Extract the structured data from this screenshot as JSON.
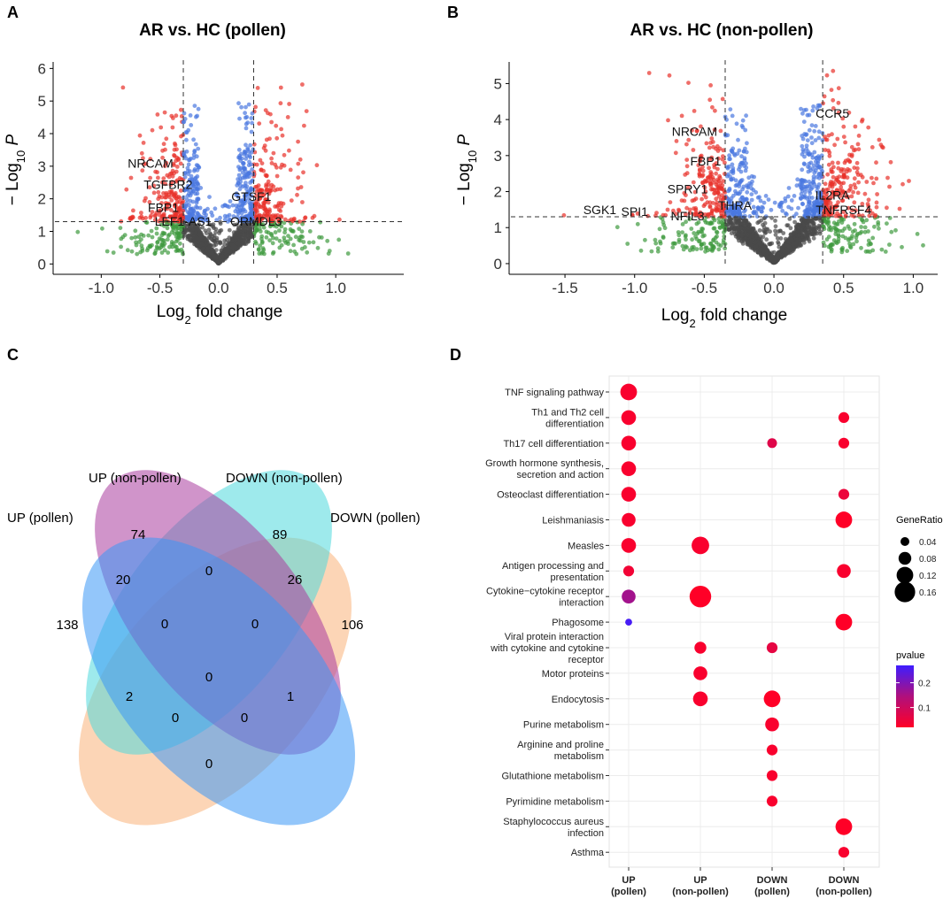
{
  "panels": {
    "a": "A",
    "b": "B",
    "c": "C",
    "d": "D"
  },
  "colors": {
    "red": "#e8302a",
    "blue": "#4a78e0",
    "green": "#3f9a3f",
    "grey": "#4a4a4a",
    "venn_up_pollen": "#f9b37a",
    "venn_up_nonpollen": "#4fd8dc",
    "venn_down_nonpollen": "#a93c9f",
    "venn_down_pollen": "#3b98f5",
    "p_low": "#ff0027",
    "p_high": "#3e1dff",
    "grid": "#ececec"
  },
  "chart_data": [
    {
      "type": "scatter",
      "panel": "A",
      "title": "AR vs. HC (pollen)",
      "xlabel": "Log2 fold change",
      "ylabel": "−Log10 P",
      "xlim": [
        -1.35,
        1.55
      ],
      "ylim": [
        -0.1,
        6.2
      ],
      "xticks": [
        -1.0,
        -0.5,
        0.0,
        0.5,
        1.0
      ],
      "xtick_labels": [
        "-1.0",
        "-0.5",
        "0.0",
        "0.5",
        "1.0"
      ],
      "yticks": [
        0,
        1,
        2,
        3,
        4,
        5,
        6
      ],
      "ytick_labels": [
        "0",
        "1",
        "2",
        "3",
        "4",
        "5",
        "6"
      ],
      "fc_threshold": 0.3,
      "p_threshold": 1.3,
      "labels": [
        {
          "text": "NRCAM",
          "x": -0.58,
          "y": 2.95
        },
        {
          "text": "TGFBR2",
          "x": -0.43,
          "y": 2.3
        },
        {
          "text": "FBP1",
          "x": -0.47,
          "y": 1.6
        },
        {
          "text": "LEF1-AS1",
          "x": -0.3,
          "y": 1.17
        },
        {
          "text": "GTSF1",
          "x": 0.28,
          "y": 1.93
        },
        {
          "text": "ORMDL3",
          "x": 0.32,
          "y": 1.17
        }
      ],
      "seed": 11,
      "n_base": 1500,
      "base_gain": 4.2,
      "outer_gain": 1.8,
      "spread": 0.33
    },
    {
      "type": "scatter",
      "panel": "B",
      "title": "AR vs. HC (non-pollen)",
      "xlabel": "Log2 fold change",
      "ylabel": "−Log10 P",
      "xlim": [
        -1.85,
        1.15
      ],
      "ylim": [
        -0.1,
        5.6
      ],
      "xticks": [
        -1.5,
        -1.0,
        -0.5,
        0.0,
        0.5,
        1.0
      ],
      "xtick_labels": [
        "-1.5",
        "-1.0",
        "-0.5",
        "0.0",
        "0.5",
        "1.0"
      ],
      "yticks": [
        0,
        1,
        2,
        3,
        4,
        5
      ],
      "ytick_labels": [
        "0",
        "1",
        "2",
        "3",
        "4",
        "5"
      ],
      "fc_threshold": 0.35,
      "p_threshold": 1.3,
      "labels": [
        {
          "text": "CCR5",
          "x": 0.42,
          "y": 4.05
        },
        {
          "text": "NRCAM",
          "x": -0.57,
          "y": 3.55
        },
        {
          "text": "FBP1",
          "x": -0.49,
          "y": 2.72
        },
        {
          "text": "SPRY1",
          "x": -0.62,
          "y": 1.95
        },
        {
          "text": "THRA",
          "x": -0.28,
          "y": 1.5
        },
        {
          "text": "IL2RA",
          "x": 0.42,
          "y": 1.78
        },
        {
          "text": "SGK1",
          "x": -1.25,
          "y": 1.38
        },
        {
          "text": "SPI1",
          "x": -1.0,
          "y": 1.33
        },
        {
          "text": "NFIL3",
          "x": -0.62,
          "y": 1.2
        },
        {
          "text": "TNFRSF4",
          "x": 0.5,
          "y": 1.38
        }
      ],
      "seed": 23,
      "n_base": 1700,
      "base_gain": 4.0,
      "outer_gain": 1.7,
      "spread": 0.38
    },
    {
      "type": "venn",
      "panel": "C",
      "sets": [
        "UP (pollen)",
        "UP (non-pollen)",
        "DOWN (non-pollen)",
        "DOWN (pollen)"
      ],
      "regions": [
        {
          "sets": [
            "UP (pollen)"
          ],
          "count": 138
        },
        {
          "sets": [
            "UP (non-pollen)"
          ],
          "count": 74
        },
        {
          "sets": [
            "DOWN (non-pollen)"
          ],
          "count": 89
        },
        {
          "sets": [
            "DOWN (pollen)"
          ],
          "count": 106
        },
        {
          "sets": [
            "UP (pollen)",
            "UP (non-pollen)"
          ],
          "count": 20
        },
        {
          "sets": [
            "UP (non-pollen)",
            "DOWN (non-pollen)"
          ],
          "count": 0
        },
        {
          "sets": [
            "DOWN (non-pollen)",
            "DOWN (pollen)"
          ],
          "count": 26
        },
        {
          "sets": [
            "UP (pollen)",
            "UP (non-pollen)",
            "DOWN (non-pollen)"
          ],
          "count": 0
        },
        {
          "sets": [
            "UP (non-pollen)",
            "DOWN (non-pollen)",
            "DOWN (pollen)"
          ],
          "count": 0
        },
        {
          "sets": [
            "UP (pollen)",
            "UP (non-pollen)",
            "DOWN (non-pollen)",
            "DOWN (pollen)"
          ],
          "count": 0
        },
        {
          "sets": [
            "UP (pollen)",
            "DOWN (non-pollen)"
          ],
          "count": 2
        },
        {
          "sets": [
            "UP (non-pollen)",
            "DOWN (pollen)"
          ],
          "count": 1
        },
        {
          "sets": [
            "UP (pollen)",
            "DOWN (non-pollen)",
            "DOWN (pollen)"
          ],
          "count": 0
        },
        {
          "sets": [
            "UP (pollen)",
            "UP (non-pollen)",
            "DOWN (pollen)"
          ],
          "count": 0
        },
        {
          "sets": [
            "UP (pollen)",
            "DOWN (pollen)"
          ],
          "count": 0
        }
      ]
    },
    {
      "type": "bubble",
      "panel": "D",
      "groups": [
        "UP\n(pollen)",
        "UP\n(non-pollen)",
        "DOWN\n(pollen)",
        "DOWN\n(non-pollen)"
      ],
      "pathways": [
        "TNF signaling pathway",
        "Th1 and Th2 cell\ndifferentiation",
        "Th17 cell differentiation",
        "Growth hormone synthesis,\nsecretion and action",
        "Osteoclast differentiation",
        "Leishmaniasis",
        "Measles",
        "Antigen processing and\npresentation",
        "Cytokine−cytokine receptor\ninteraction",
        "Phagosome",
        "Viral protein interaction\nwith cytokine and cytokine\nreceptor",
        "Motor proteins",
        "Endocytosis",
        "Purine metabolism",
        "Arginine and proline\nmetabolism",
        "Glutathione metabolism",
        "Pyrimidine metabolism",
        "Staphylococcus aureus\ninfection",
        "Asthma"
      ],
      "points": [
        {
          "pathway": 0,
          "group": 0,
          "gene_ratio": 0.12,
          "pvalue": 0.03
        },
        {
          "pathway": 1,
          "group": 0,
          "gene_ratio": 0.1,
          "pvalue": 0.03
        },
        {
          "pathway": 1,
          "group": 3,
          "gene_ratio": 0.06,
          "pvalue": 0.03
        },
        {
          "pathway": 2,
          "group": 0,
          "gene_ratio": 0.1,
          "pvalue": 0.03
        },
        {
          "pathway": 2,
          "group": 2,
          "gene_ratio": 0.05,
          "pvalue": 0.07
        },
        {
          "pathway": 2,
          "group": 3,
          "gene_ratio": 0.06,
          "pvalue": 0.03
        },
        {
          "pathway": 3,
          "group": 0,
          "gene_ratio": 0.1,
          "pvalue": 0.03
        },
        {
          "pathway": 4,
          "group": 0,
          "gene_ratio": 0.1,
          "pvalue": 0.03
        },
        {
          "pathway": 4,
          "group": 3,
          "gene_ratio": 0.06,
          "pvalue": 0.05
        },
        {
          "pathway": 5,
          "group": 0,
          "gene_ratio": 0.09,
          "pvalue": 0.03
        },
        {
          "pathway": 5,
          "group": 3,
          "gene_ratio": 0.12,
          "pvalue": 0.02
        },
        {
          "pathway": 6,
          "group": 0,
          "gene_ratio": 0.1,
          "pvalue": 0.03
        },
        {
          "pathway": 6,
          "group": 1,
          "gene_ratio": 0.13,
          "pvalue": 0.03
        },
        {
          "pathway": 7,
          "group": 0,
          "gene_ratio": 0.06,
          "pvalue": 0.04
        },
        {
          "pathway": 7,
          "group": 3,
          "gene_ratio": 0.09,
          "pvalue": 0.03
        },
        {
          "pathway": 8,
          "group": 0,
          "gene_ratio": 0.09,
          "pvalue": 0.16
        },
        {
          "pathway": 8,
          "group": 1,
          "gene_ratio": 0.17,
          "pvalue": 0.02
        },
        {
          "pathway": 9,
          "group": 0,
          "gene_ratio": 0.02,
          "pvalue": 0.26
        },
        {
          "pathway": 9,
          "group": 3,
          "gene_ratio": 0.12,
          "pvalue": 0.02
        },
        {
          "pathway": 10,
          "group": 1,
          "gene_ratio": 0.07,
          "pvalue": 0.03
        },
        {
          "pathway": 10,
          "group": 2,
          "gene_ratio": 0.06,
          "pvalue": 0.06
        },
        {
          "pathway": 11,
          "group": 1,
          "gene_ratio": 0.09,
          "pvalue": 0.03
        },
        {
          "pathway": 12,
          "group": 1,
          "gene_ratio": 0.1,
          "pvalue": 0.03
        },
        {
          "pathway": 12,
          "group": 2,
          "gene_ratio": 0.12,
          "pvalue": 0.02
        },
        {
          "pathway": 13,
          "group": 2,
          "gene_ratio": 0.09,
          "pvalue": 0.03
        },
        {
          "pathway": 14,
          "group": 2,
          "gene_ratio": 0.06,
          "pvalue": 0.03
        },
        {
          "pathway": 15,
          "group": 2,
          "gene_ratio": 0.06,
          "pvalue": 0.03
        },
        {
          "pathway": 16,
          "group": 2,
          "gene_ratio": 0.06,
          "pvalue": 0.03
        },
        {
          "pathway": 17,
          "group": 3,
          "gene_ratio": 0.12,
          "pvalue": 0.02
        },
        {
          "pathway": 18,
          "group": 3,
          "gene_ratio": 0.06,
          "pvalue": 0.03
        }
      ],
      "size_legend": {
        "title": "GeneRatio",
        "values": [
          0.04,
          0.08,
          0.12,
          0.16
        ],
        "labels": [
          "0.04",
          "0.08",
          "0.12",
          "0.16"
        ]
      },
      "color_legend": {
        "title": "pvalue",
        "range": [
          0.02,
          0.27
        ],
        "ticks": [
          0.1,
          0.2
        ],
        "tick_labels": [
          "0.1",
          "0.2"
        ]
      }
    }
  ]
}
